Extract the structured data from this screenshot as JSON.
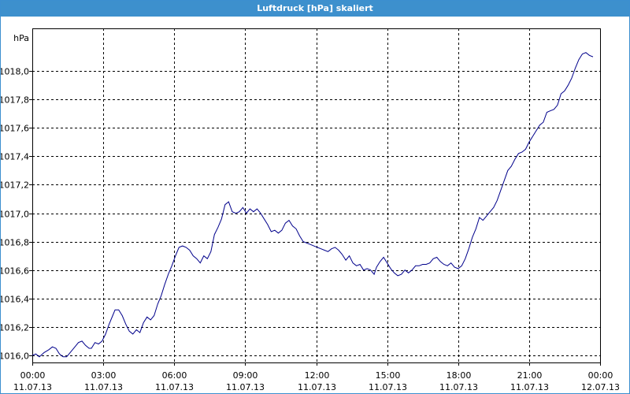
{
  "window": {
    "title": "Luftdruck [hPa] skaliert"
  },
  "chart_data": {
    "type": "line",
    "title": "Luftdruck [hPa] skaliert",
    "ylabel": "hPa",
    "xlabel": "",
    "ylim": [
      1015.95,
      1018.3
    ],
    "xlim_hours": [
      0,
      24
    ],
    "grid": true,
    "y_ticks": [
      {
        "value": 1016.0,
        "label": "1016,0"
      },
      {
        "value": 1016.2,
        "label": "1016,2"
      },
      {
        "value": 1016.4,
        "label": "1016,4"
      },
      {
        "value": 1016.6,
        "label": "1016,6"
      },
      {
        "value": 1016.8,
        "label": "1016,8"
      },
      {
        "value": 1017.0,
        "label": "1017,0"
      },
      {
        "value": 1017.2,
        "label": "1017,2"
      },
      {
        "value": 1017.4,
        "label": "1017,4"
      },
      {
        "value": 1017.6,
        "label": "1017,6"
      },
      {
        "value": 1017.8,
        "label": "1017,8"
      },
      {
        "value": 1018.0,
        "label": "1018,0"
      }
    ],
    "x_ticks": [
      {
        "hour": 0,
        "time": "00:00",
        "date": "11.07.13"
      },
      {
        "hour": 3,
        "time": "03:00",
        "date": "11.07.13"
      },
      {
        "hour": 6,
        "time": "06:00",
        "date": "11.07.13"
      },
      {
        "hour": 9,
        "time": "09:00",
        "date": "11.07.13"
      },
      {
        "hour": 12,
        "time": "12:00",
        "date": "11.07.13"
      },
      {
        "hour": 15,
        "time": "15:00",
        "date": "11.07.13"
      },
      {
        "hour": 18,
        "time": "18:00",
        "date": "11.07.13"
      },
      {
        "hour": 21,
        "time": "21:00",
        "date": "11.07.13"
      },
      {
        "hour": 24,
        "time": "00:00",
        "date": "12.07.13"
      }
    ],
    "series": [
      {
        "color": "#00008b",
        "points": [
          [
            0.0,
            1016.0
          ],
          [
            0.15,
            1016.01
          ],
          [
            0.3,
            1015.99
          ],
          [
            0.5,
            1016.02
          ],
          [
            0.7,
            1016.04
          ],
          [
            0.85,
            1016.06
          ],
          [
            1.0,
            1016.05
          ],
          [
            1.15,
            1016.01
          ],
          [
            1.3,
            1015.99
          ],
          [
            1.45,
            1015.99
          ],
          [
            1.6,
            1016.02
          ],
          [
            1.8,
            1016.06
          ],
          [
            1.95,
            1016.09
          ],
          [
            2.1,
            1016.1
          ],
          [
            2.25,
            1016.07
          ],
          [
            2.4,
            1016.05
          ],
          [
            2.5,
            1016.05
          ],
          [
            2.65,
            1016.09
          ],
          [
            2.8,
            1016.08
          ],
          [
            2.95,
            1016.1
          ],
          [
            3.1,
            1016.15
          ],
          [
            3.25,
            1016.22
          ],
          [
            3.4,
            1016.28
          ],
          [
            3.5,
            1016.32
          ],
          [
            3.65,
            1016.32
          ],
          [
            3.8,
            1016.28
          ],
          [
            3.95,
            1016.22
          ],
          [
            4.1,
            1016.17
          ],
          [
            4.25,
            1016.15
          ],
          [
            4.4,
            1016.18
          ],
          [
            4.55,
            1016.16
          ],
          [
            4.7,
            1016.23
          ],
          [
            4.85,
            1016.27
          ],
          [
            5.0,
            1016.25
          ],
          [
            5.15,
            1016.28
          ],
          [
            5.3,
            1016.36
          ],
          [
            5.45,
            1016.42
          ],
          [
            5.6,
            1016.5
          ],
          [
            5.75,
            1016.57
          ],
          [
            5.9,
            1016.63
          ],
          [
            6.05,
            1016.7
          ],
          [
            6.2,
            1016.76
          ],
          [
            6.35,
            1016.77
          ],
          [
            6.5,
            1016.76
          ],
          [
            6.65,
            1016.74
          ],
          [
            6.8,
            1016.7
          ],
          [
            6.95,
            1016.68
          ],
          [
            7.1,
            1016.65
          ],
          [
            7.25,
            1016.7
          ],
          [
            7.4,
            1016.68
          ],
          [
            7.55,
            1016.73
          ],
          [
            7.7,
            1016.85
          ],
          [
            7.85,
            1016.9
          ],
          [
            8.0,
            1016.96
          ],
          [
            8.15,
            1017.06
          ],
          [
            8.3,
            1017.08
          ],
          [
            8.45,
            1017.01
          ],
          [
            8.6,
            1017.0
          ],
          [
            8.75,
            1017.01
          ],
          [
            8.9,
            1017.04
          ],
          [
            9.05,
            1017.0
          ],
          [
            9.2,
            1017.03
          ],
          [
            9.35,
            1017.01
          ],
          [
            9.5,
            1017.03
          ],
          [
            9.65,
            1017.0
          ],
          [
            9.8,
            1016.96
          ],
          [
            9.95,
            1016.92
          ],
          [
            10.1,
            1016.87
          ],
          [
            10.25,
            1016.88
          ],
          [
            10.4,
            1016.86
          ],
          [
            10.55,
            1016.88
          ],
          [
            10.7,
            1016.93
          ],
          [
            10.85,
            1016.95
          ],
          [
            11.0,
            1016.91
          ],
          [
            11.15,
            1016.89
          ],
          [
            11.3,
            1016.84
          ],
          [
            11.45,
            1016.8
          ],
          [
            11.6,
            1016.79
          ],
          [
            11.75,
            1016.78
          ],
          [
            11.9,
            1016.77
          ],
          [
            12.05,
            1016.76
          ],
          [
            12.2,
            1016.75
          ],
          [
            12.35,
            1016.74
          ],
          [
            12.5,
            1016.73
          ],
          [
            12.65,
            1016.75
          ],
          [
            12.8,
            1016.76
          ],
          [
            12.95,
            1016.74
          ],
          [
            13.1,
            1016.71
          ],
          [
            13.25,
            1016.67
          ],
          [
            13.4,
            1016.7
          ],
          [
            13.55,
            1016.65
          ],
          [
            13.7,
            1016.63
          ],
          [
            13.85,
            1016.64
          ],
          [
            14.0,
            1016.6
          ],
          [
            14.15,
            1016.61
          ],
          [
            14.3,
            1016.6
          ],
          [
            14.45,
            1016.57
          ],
          [
            14.55,
            1016.62
          ],
          [
            14.7,
            1016.66
          ],
          [
            14.85,
            1016.69
          ],
          [
            15.0,
            1016.65
          ],
          [
            15.15,
            1016.61
          ],
          [
            15.3,
            1016.58
          ],
          [
            15.45,
            1016.56
          ],
          [
            15.6,
            1016.57
          ],
          [
            15.75,
            1016.6
          ],
          [
            15.9,
            1016.58
          ],
          [
            16.05,
            1016.6
          ],
          [
            16.2,
            1016.63
          ],
          [
            16.35,
            1016.63
          ],
          [
            16.5,
            1016.64
          ],
          [
            16.65,
            1016.64
          ],
          [
            16.8,
            1016.65
          ],
          [
            16.95,
            1016.68
          ],
          [
            17.1,
            1016.69
          ],
          [
            17.25,
            1016.66
          ],
          [
            17.4,
            1016.64
          ],
          [
            17.55,
            1016.63
          ],
          [
            17.7,
            1016.65
          ],
          [
            17.85,
            1016.62
          ],
          [
            18.0,
            1016.61
          ],
          [
            18.15,
            1016.63
          ],
          [
            18.3,
            1016.68
          ],
          [
            18.45,
            1016.75
          ],
          [
            18.6,
            1016.83
          ],
          [
            18.75,
            1016.89
          ],
          [
            18.9,
            1016.97
          ],
          [
            19.05,
            1016.95
          ],
          [
            19.2,
            1016.98
          ],
          [
            19.35,
            1017.01
          ],
          [
            19.5,
            1017.04
          ],
          [
            19.65,
            1017.09
          ],
          [
            19.8,
            1017.16
          ],
          [
            19.95,
            1017.23
          ],
          [
            20.1,
            1017.3
          ],
          [
            20.25,
            1017.33
          ],
          [
            20.4,
            1017.38
          ],
          [
            20.55,
            1017.42
          ],
          [
            20.7,
            1017.43
          ],
          [
            20.85,
            1017.45
          ],
          [
            21.0,
            1017.5
          ],
          [
            21.15,
            1017.54
          ],
          [
            21.3,
            1017.58
          ],
          [
            21.45,
            1017.62
          ],
          [
            21.6,
            1017.64
          ],
          [
            21.75,
            1017.71
          ],
          [
            21.9,
            1017.72
          ],
          [
            22.05,
            1017.73
          ],
          [
            22.2,
            1017.76
          ],
          [
            22.35,
            1017.84
          ],
          [
            22.5,
            1017.86
          ],
          [
            22.65,
            1017.9
          ],
          [
            22.8,
            1017.95
          ],
          [
            22.95,
            1018.02
          ],
          [
            23.1,
            1018.08
          ],
          [
            23.25,
            1018.12
          ],
          [
            23.4,
            1018.13
          ],
          [
            23.55,
            1018.11
          ],
          [
            23.7,
            1018.1
          ]
        ]
      }
    ]
  }
}
